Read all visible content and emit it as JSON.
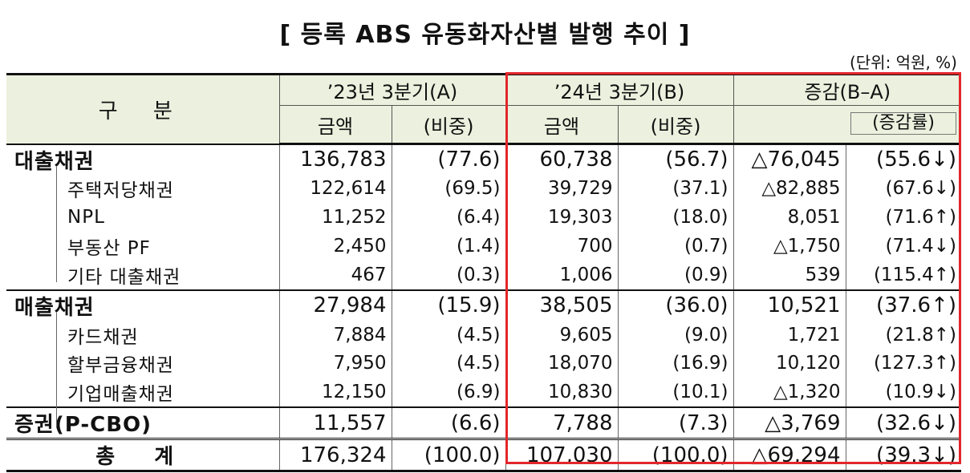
{
  "title": "[ 등록 ABS 유동화자산별 발행 추이 ]",
  "unit_note": "(단위: 억원, %)",
  "header": {
    "gubun": "구 분",
    "col_2023": "’23년 3분기(A)",
    "col_2024": "’24년 3분기(B)",
    "col_change": "증감(B–A)",
    "amount": "금액",
    "share": "(비중)",
    "change_rate": "(증감률)"
  },
  "rows": [
    {
      "label": "대출채권",
      "a_amount": "136,783",
      "a_share": "(77.6)",
      "b_amount": "60,738",
      "b_share": "(56.7)",
      "diff": "△76,045",
      "rate": "(55.6↓)"
    },
    {
      "label": "주택저당채권",
      "a_amount": "122,614",
      "a_share": "(69.5)",
      "b_amount": "39,729",
      "b_share": "(37.1)",
      "diff": "△82,885",
      "rate": "(67.6↓)"
    },
    {
      "label": "NPL",
      "a_amount": "11,252",
      "a_share": "(6.4)",
      "b_amount": "19,303",
      "b_share": "(18.0)",
      "diff": "8,051",
      "rate": "(71.6↑)"
    },
    {
      "label": "부동산 PF",
      "a_amount": "2,450",
      "a_share": "(1.4)",
      "b_amount": "700",
      "b_share": "(0.7)",
      "diff": "△1,750",
      "rate": "(71.4↓)"
    },
    {
      "label": "기타 대출채권",
      "a_amount": "467",
      "a_share": "(0.3)",
      "b_amount": "1,006",
      "b_share": "(0.9)",
      "diff": "539",
      "rate": "(115.4↑)"
    },
    {
      "label": "매출채권",
      "a_amount": "27,984",
      "a_share": "(15.9)",
      "b_amount": "38,505",
      "b_share": "(36.0)",
      "diff": "10,521",
      "rate": "(37.6↑)"
    },
    {
      "label": "카드채권",
      "a_amount": "7,884",
      "a_share": "(4.5)",
      "b_amount": "9,605",
      "b_share": "(9.0)",
      "diff": "1,721",
      "rate": "(21.8↑)"
    },
    {
      "label": "할부금융채권",
      "a_amount": "7,950",
      "a_share": "(4.5)",
      "b_amount": "18,070",
      "b_share": "(16.9)",
      "diff": "10,120",
      "rate": "(127.3↑)"
    },
    {
      "label": "기업매출채권",
      "a_amount": "12,150",
      "a_share": "(6.9)",
      "b_amount": "10,830",
      "b_share": "(10.1)",
      "diff": "△1,320",
      "rate": "(10.9↓)"
    },
    {
      "label": "증권(P-CBO)",
      "a_amount": "11,557",
      "a_share": "(6.6)",
      "b_amount": "7,788",
      "b_share": "(7.3)",
      "diff": "△3,769",
      "rate": "(32.6↓)"
    },
    {
      "label": "총 계",
      "a_amount": "176,324",
      "a_share": "(100.0)",
      "b_amount": "107,030",
      "b_share": "(100.0)",
      "diff": "△69,294",
      "rate": "(39.3↓)"
    }
  ],
  "highlight_color": "#e3262b",
  "header_bg": "#ebf1de"
}
